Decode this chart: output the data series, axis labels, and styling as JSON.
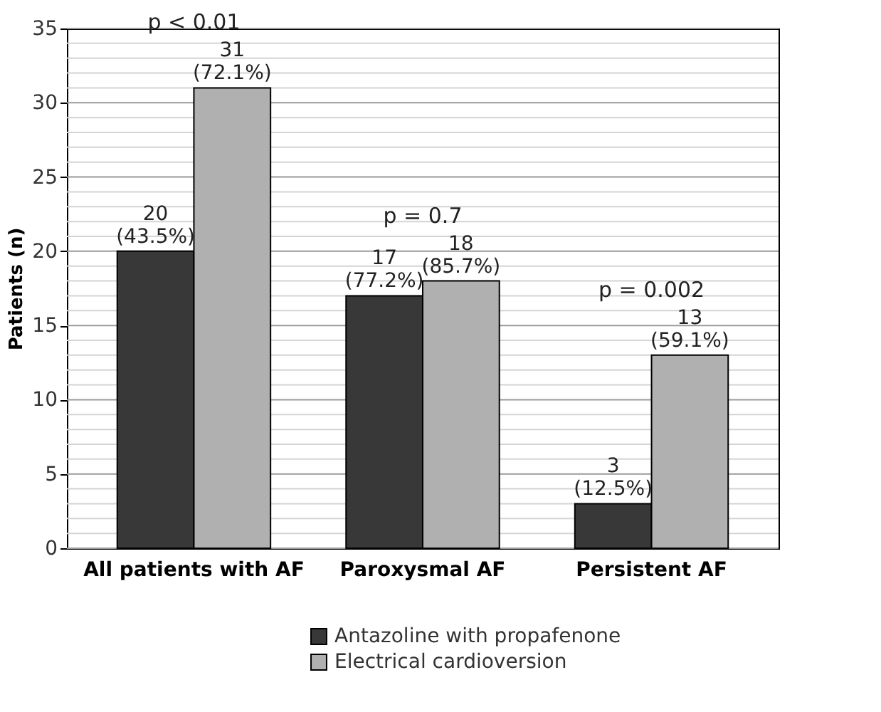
{
  "chart_data": {
    "type": "bar",
    "ylabel": "Patients (n)",
    "categories": [
      "All patients with AF",
      "Paroxysmal AF",
      "Persistent AF"
    ],
    "series": [
      {
        "name": "Antazoline with propafenone",
        "color": "#383838",
        "values": [
          20,
          17,
          3
        ],
        "value_labels": [
          "20\n(43.5%)",
          "17\n(77.2%)",
          "3\n(12.5%)"
        ]
      },
      {
        "name": "Electrical cardioversion",
        "color": "#b0b0b0",
        "values": [
          31,
          18,
          13
        ],
        "value_labels": [
          "31\n(72.1%)",
          "18\n(85.7%)",
          "13\n(59.1%)"
        ]
      }
    ],
    "annotations": [
      "p < 0.01",
      "p = 0.7",
      "p = 0.002"
    ],
    "ylim": [
      0,
      35
    ],
    "yticks": [
      0,
      {
        "value": 1,
        "label": null
      },
      {
        "value": 2,
        "label": null
      },
      {
        "value": 3,
        "label": null
      },
      {
        "value": 4,
        "label": null
      },
      5,
      {
        "value": 6,
        "label": null
      },
      {
        "value": 7,
        "label": null
      },
      {
        "value": 8,
        "label": null
      },
      {
        "value": 9,
        "label": null
      },
      10,
      {
        "value": 11,
        "label": null
      },
      {
        "value": 12,
        "label": null
      },
      {
        "value": 13,
        "label": null
      },
      {
        "value": 14,
        "label": null
      },
      15,
      {
        "value": 16,
        "label": null
      },
      {
        "value": 17,
        "label": null
      },
      {
        "value": 18,
        "label": null
      },
      {
        "value": 19,
        "label": null
      },
      20,
      {
        "value": 21,
        "label": null
      },
      {
        "value": 22,
        "label": null
      },
      {
        "value": 23,
        "label": null
      },
      {
        "value": 24,
        "label": null
      },
      25,
      {
        "value": 26,
        "label": null
      },
      {
        "value": 27,
        "label": null
      },
      {
        "value": 28,
        "label": null
      },
      {
        "value": 29,
        "label": null
      },
      30,
      {
        "value": 31,
        "label": null
      },
      {
        "value": 32,
        "label": null
      },
      {
        "value": 33,
        "label": null
      },
      {
        "value": 34,
        "label": null
      },
      35
    ],
    "grid": "y",
    "legend": "bottom"
  }
}
